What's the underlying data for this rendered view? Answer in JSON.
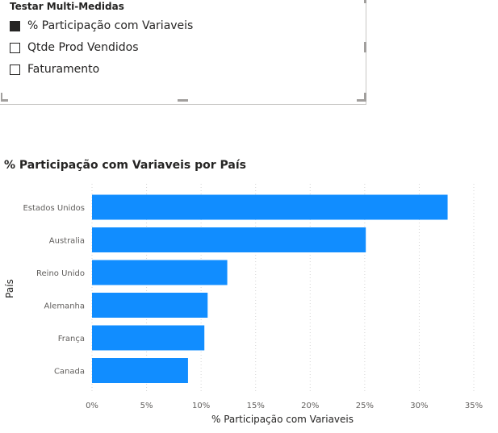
{
  "slicer": {
    "title": "Testar Multi-Medidas",
    "options": [
      {
        "label": "% Participação com Variaveis",
        "checked": true
      },
      {
        "label": "Qtde Prod Vendidos",
        "checked": false
      },
      {
        "label": "Faturamento",
        "checked": false
      }
    ]
  },
  "chart_data": {
    "type": "bar",
    "orientation": "horizontal",
    "title": "% Participação com Variaveis por País",
    "xlabel": "% Participação com Variaveis",
    "ylabel": "País",
    "categories": [
      "Estados Unidos",
      "Australia",
      "Reino Unido",
      "Alemanha",
      "França",
      "Canada"
    ],
    "values": [
      32.6,
      25.1,
      12.4,
      10.6,
      10.3,
      8.8
    ],
    "xlim": [
      0,
      35
    ],
    "xticks": [
      0,
      5,
      10,
      15,
      20,
      25,
      30,
      35
    ],
    "xtick_labels": [
      "0%",
      "5%",
      "10%",
      "15%",
      "20%",
      "25%",
      "30%",
      "35%"
    ],
    "grid": true,
    "bar_color": "#118DFF"
  }
}
